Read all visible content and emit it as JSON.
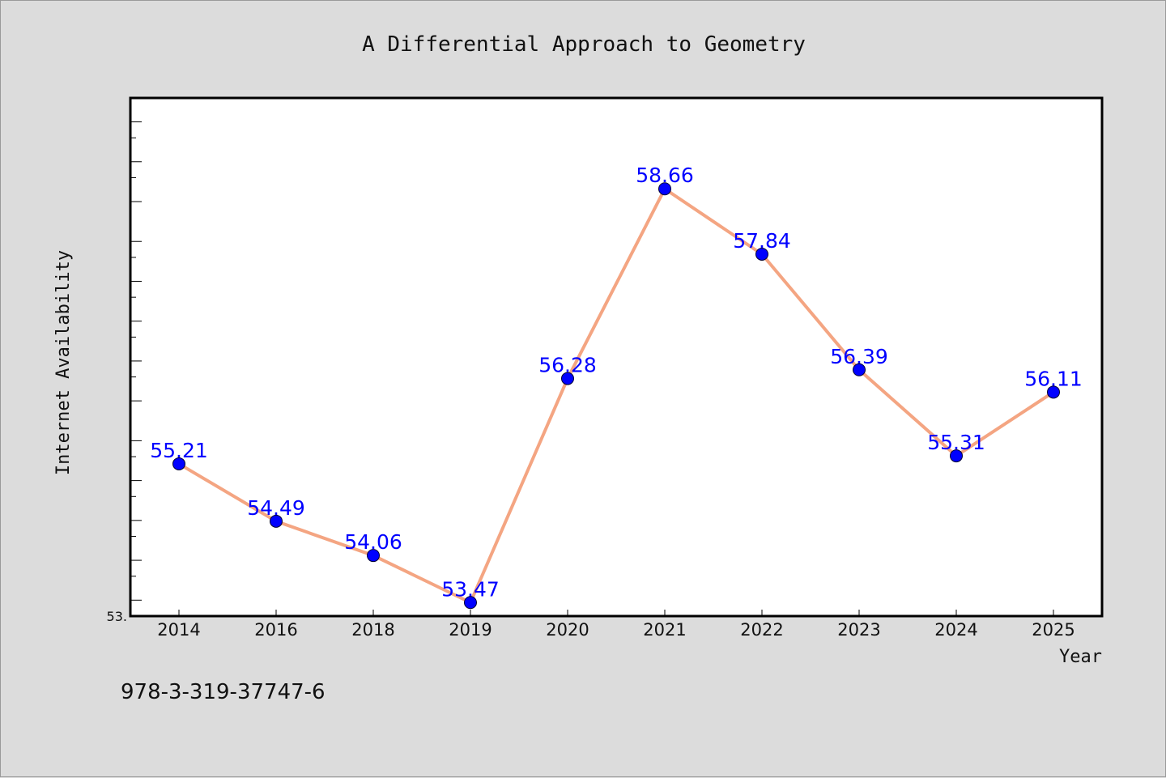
{
  "colors": {
    "background": "#dcdcdc",
    "plot_background": "#ffffff",
    "line": "#f4a582",
    "marker": "#0000ff",
    "data_label": "#0000ff"
  },
  "footer": {
    "code": "978-3-319-37747-6"
  },
  "chart_data": {
    "type": "line",
    "title": "A Differential Approach to Geometry",
    "xlabel": "Year",
    "ylabel": "Internet Availability",
    "categories": [
      "2014",
      "2016",
      "2018",
      "2019",
      "2020",
      "2021",
      "2022",
      "2023",
      "2024",
      "2025"
    ],
    "series": [
      {
        "values": [
          55.21,
          54.49,
          54.06,
          53.47,
          56.28,
          58.66,
          57.84,
          56.39,
          55.31,
          56.11
        ]
      }
    ],
    "data_labels": [
      "55.21",
      "54.49",
      "54.06",
      "53.47",
      "56.28",
      "58.66",
      "57.84",
      "56.39",
      "55.31",
      "56.11"
    ],
    "ylim": [
      53.3,
      59.8
    ],
    "ytick_label": "53.",
    "y_minor_step": 0.5,
    "grid": false,
    "legend": "none"
  }
}
